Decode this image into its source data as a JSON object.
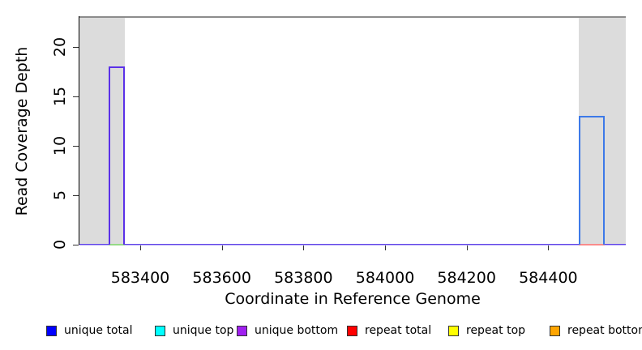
{
  "figure": {
    "ylabel": "Read Coverage Depth",
    "xlabel": "Coordinate in Reference Genome"
  },
  "colors": {
    "background": "#ffffff",
    "shaded_flank": "#dcdcdc",
    "plot_top_border": "#8c8c8c",
    "axis": "#000000",
    "baseline_purple_top": "#5f43e8",
    "baseline_purple_bottom": "#b4a7f6"
  },
  "chart_data": {
    "type": "line",
    "title": "",
    "xlabel": "Coordinate in Reference Genome",
    "ylabel": "Read Coverage Depth",
    "xlim": [
      583251,
      584590
    ],
    "ylim": [
      0,
      23.1
    ],
    "x_ticks": [
      "583400",
      "583600",
      "583800",
      "584000",
      "584200",
      "584400"
    ],
    "x_tick_values": [
      583400,
      583600,
      583800,
      584000,
      584200,
      584400
    ],
    "y_ticks": [
      "0",
      "5",
      "10",
      "15",
      "20"
    ],
    "y_tick_values": [
      0,
      5,
      10,
      15,
      20
    ],
    "grid": false,
    "legend_position": "bottom",
    "shaded_regions": [
      {
        "x0": 583251,
        "x1": 583362
      },
      {
        "x0": 584475,
        "x1": 584590
      }
    ],
    "coverage_bars": [
      {
        "x0": 583322,
        "x1": 583362,
        "depth": 18,
        "stroke": "#5b31e8"
      },
      {
        "x0": 584475,
        "x1": 584539,
        "depth": 13,
        "stroke": "#3d79e8"
      }
    ],
    "zero_line": {
      "x0": 583251,
      "x1": 584590,
      "depth": 0
    },
    "zero_line_segments": [
      {
        "x0": 583323,
        "x1": 583362,
        "depth": 0,
        "color": "#95da86"
      },
      {
        "x0": 584475,
        "x1": 584539,
        "depth": 0,
        "color": "#f98b8b"
      }
    ],
    "legend": [
      {
        "label": "unique total",
        "color": "#0000ff"
      },
      {
        "label": "unique top",
        "color": "#00ffff"
      },
      {
        "label": "unique bottom",
        "color": "#a020f0"
      },
      {
        "label": "repeat total",
        "color": "#ff0000"
      },
      {
        "label": "repeat top",
        "color": "#ffff00"
      },
      {
        "label": "repeat bottom",
        "color": "#ffa500"
      }
    ]
  }
}
